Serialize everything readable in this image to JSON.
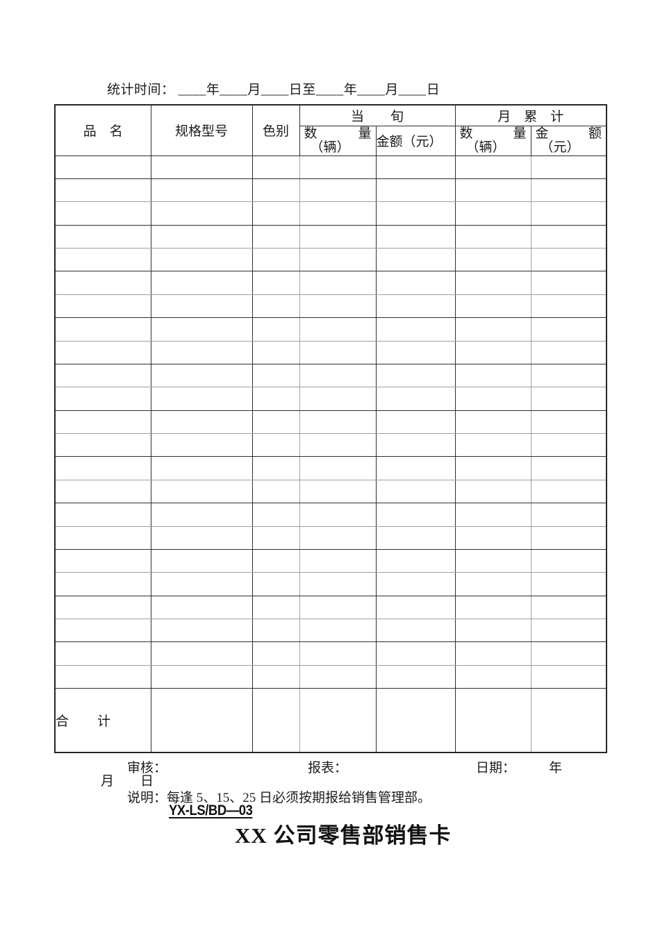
{
  "page": {
    "stat_time": "统计时间： ____年____月____日至____年____月____日"
  },
  "table": {
    "col_product": "品　名",
    "col_spec": "规格型号",
    "col_color": "色别",
    "group_current_period": "当　　旬",
    "group_month_total": "月　累　计",
    "qty_char_first": "数",
    "qty_char_second": "量",
    "qty_unit": "（辆）",
    "amount_current": "金额（元）",
    "amount_char_first": "金",
    "amount_char_second": "额",
    "amount_unit": "（元）",
    "empty_row_count": 23,
    "column_count": 7,
    "total_label": "合　　计"
  },
  "footer": {
    "review_label": "审核：",
    "report_label": "报表：",
    "date_label": "日期：",
    "year_char": "年",
    "month_char": "月",
    "day_char": "日",
    "note": "说明：每逢 5、15、25 日必须按期报给销售管理部。",
    "form_code": "YX-LS/BD—03",
    "doc_title": "XX 公司零售部销售卡"
  }
}
